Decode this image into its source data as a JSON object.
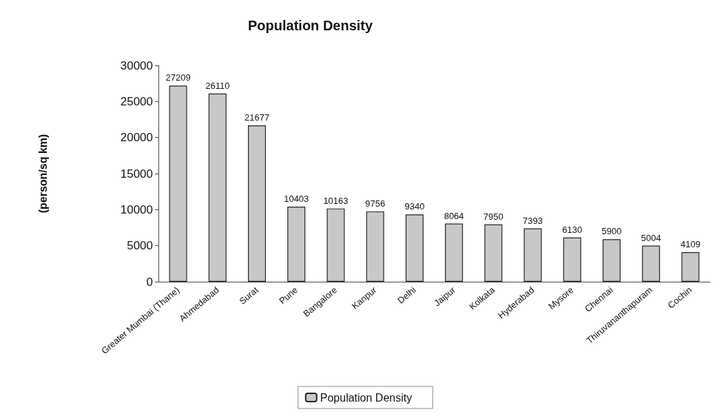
{
  "chart_data": {
    "type": "bar",
    "title": "Population Density",
    "ylabel": "(person/sq km)",
    "categories": [
      "Greater Mumbai (Thane)",
      "Ahmedabad",
      "Surat",
      "Pune",
      "Bangalore",
      "Kanpur",
      "Delhi",
      "Jaipur",
      "Kolkata",
      "Hyderabad",
      "Mysore",
      "Chennai",
      "Thiruvananthapuram",
      "Cochin"
    ],
    "series": [
      {
        "name": "Population Density",
        "color": "#c8c8c8",
        "values": [
          27209,
          26110,
          21677,
          10403,
          10163,
          9756,
          9340,
          8064,
          7950,
          7393,
          6130,
          5900,
          5004,
          4109
        ]
      }
    ],
    "ylim": [
      0,
      30000
    ],
    "yticks": [
      0,
      5000,
      10000,
      15000,
      20000,
      25000,
      30000
    ],
    "data_labels": true,
    "legend": "bottom",
    "grid": false
  }
}
